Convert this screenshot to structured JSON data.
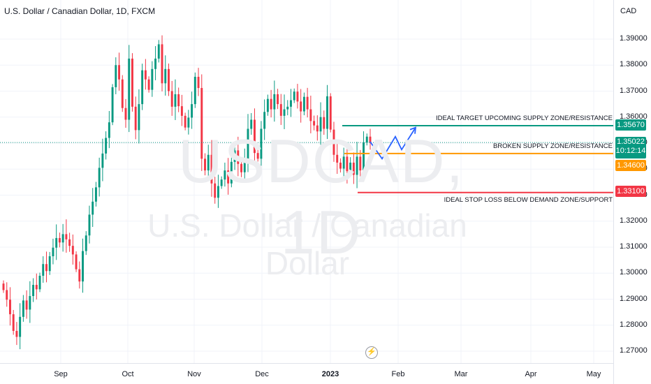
{
  "header": {
    "title": "U.S. Dollar / Canadian Dollar, 1D, FXCM"
  },
  "watermark": {
    "symbol": "USDCAD, 1D",
    "name": "U.S. Dollar / Canadian Dollar"
  },
  "axis": {
    "currency": "CAD"
  },
  "colors": {
    "up": "#089981",
    "down": "#f23645",
    "target": "#089981",
    "broken": "#ff9800",
    "stop": "#f23645",
    "projection": "#2962ff"
  },
  "annotations": {
    "target_label": "IDEAL TARGET UPCOMING SUPPLY ZONE/RESISTANCE",
    "broken_label": "BROKEN SUPPLY ZONE/RESISTANCE",
    "stop_label": "IDEAL STOP LOSS BELOW DEMAND ZONE/SUPPORT"
  },
  "price_tags": {
    "target": "1.35670",
    "current": "1.35022",
    "countdown": "10:12:14",
    "broken": "1.34600",
    "stop": "1.33100"
  },
  "icons": {
    "replay": "flash-icon"
  },
  "chart_data": {
    "type": "candlestick",
    "title": "U.S. Dollar / Canadian Dollar, 1D, FXCM",
    "y_ticks": [
      "1.27000",
      "1.28000",
      "1.29000",
      "1.30000",
      "1.31000",
      "1.32000",
      "1.33000",
      "1.34000",
      "1.35000",
      "1.36000",
      "1.37000",
      "1.38000",
      "1.39000"
    ],
    "x_ticks": [
      {
        "label": "Sep",
        "bold": false
      },
      {
        "label": "Oct",
        "bold": false
      },
      {
        "label": "Nov",
        "bold": false
      },
      {
        "label": "Dec",
        "bold": false
      },
      {
        "label": "2023",
        "bold": true
      },
      {
        "label": "Feb",
        "bold": false
      },
      {
        "label": "Mar",
        "bold": false
      },
      {
        "label": "Apr",
        "bold": false
      },
      {
        "label": "May",
        "bold": false
      }
    ],
    "ylim": [
      1.266,
      1.401
    ],
    "levels": {
      "target": 1.3567,
      "broken": 1.346,
      "stop": 1.331,
      "current": 1.35022
    },
    "closes": [
      1.2935,
      1.2898,
      1.2842,
      1.2778,
      1.2755,
      1.2832,
      1.2895,
      1.286,
      1.2912,
      1.2955,
      1.2938,
      1.299,
      1.3035,
      1.3008,
      1.3065,
      1.3098,
      1.3135,
      1.3118,
      1.315,
      1.313,
      1.3105,
      1.3072,
      1.3015,
      1.2968,
      1.3085,
      1.3145,
      1.3225,
      1.3275,
      1.333,
      1.3405,
      1.346,
      1.352,
      1.358,
      1.3715,
      1.38,
      1.3745,
      1.3635,
      1.359,
      1.3825,
      1.364,
      1.355,
      1.365,
      1.378,
      1.3745,
      1.3705,
      1.3785,
      1.3825,
      1.388,
      1.373,
      1.3785,
      1.37,
      1.364,
      1.3688,
      1.3642,
      1.3605,
      1.356,
      1.3598,
      1.365,
      1.3755,
      1.3712,
      1.344,
      1.3395,
      1.3455,
      1.3345,
      1.329,
      1.3335,
      1.336,
      1.3395,
      1.3345,
      1.3428,
      1.3472,
      1.342,
      1.3388,
      1.344,
      1.3555,
      1.359,
      1.3462,
      1.344,
      1.3555,
      1.362,
      1.367,
      1.363,
      1.3688,
      1.365,
      1.3605,
      1.363,
      1.364,
      1.3665,
      1.3698,
      1.366,
      1.3622,
      1.3678,
      1.363,
      1.3585,
      1.3568,
      1.3545,
      1.36,
      1.3555,
      1.368,
      1.3552,
      1.3455,
      1.3425,
      1.3402,
      1.3448,
      1.3392,
      1.3425,
      1.3378,
      1.3448,
      1.3395,
      1.3502,
      1.3525,
      1.3502
    ],
    "projection": [
      [
        1.3505,
        "now"
      ],
      [
        1.344,
        "+2w"
      ],
      [
        1.3525,
        "+4w"
      ],
      [
        1.3475,
        "+5w"
      ],
      [
        1.356,
        "+7w"
      ]
    ]
  }
}
